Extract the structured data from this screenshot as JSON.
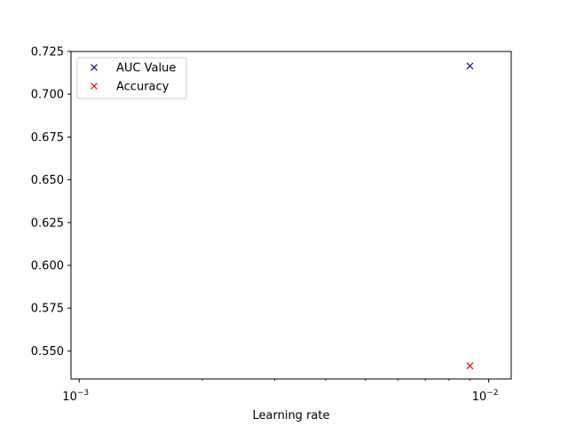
{
  "chart_data": {
    "type": "scatter",
    "title": "",
    "xlabel": "Learning rate",
    "ylabel": "",
    "xscale": "log",
    "xlim": [
      0.000955,
      0.01135
    ],
    "ylim": [
      0.5336,
      0.725
    ],
    "x_ticks": [
      {
        "value": 0.001,
        "base": "10",
        "exp": "−3"
      },
      {
        "value": 0.01,
        "base": "10",
        "exp": "−2"
      }
    ],
    "y_ticks": [
      0.55,
      0.575,
      0.6,
      0.625,
      0.65,
      0.675,
      0.7,
      0.725
    ],
    "y_tick_labels": [
      "0.550",
      "0.575",
      "0.600",
      "0.625",
      "0.650",
      "0.675",
      "0.700",
      "0.725"
    ],
    "grid": false,
    "legend_position": "upper-left",
    "series": [
      {
        "name": "AUC Value",
        "color": "#000080",
        "marker": "x",
        "points": [
          {
            "x": 0.009,
            "y": 0.7165
          }
        ]
      },
      {
        "name": "Accuracy",
        "color": "#ff0000",
        "marker": "x",
        "points": [
          {
            "x": 0.009,
            "y": 0.5413
          }
        ]
      }
    ]
  }
}
